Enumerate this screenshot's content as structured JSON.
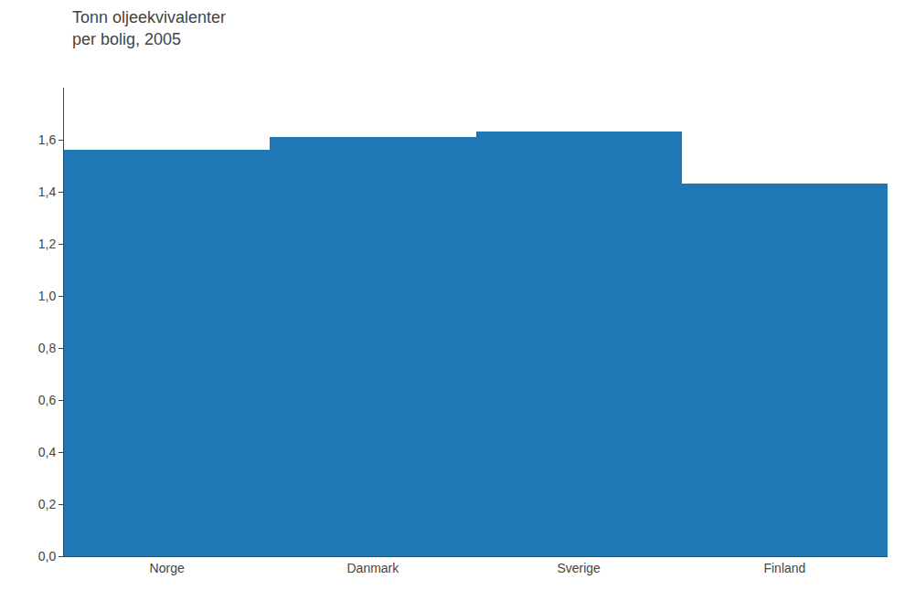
{
  "chart_data": {
    "type": "bar",
    "title": "Tonn oljeekvivalenter",
    "subtitle": "per bolig, 2005",
    "categories": [
      "Norge",
      "Danmark",
      "Sverige",
      "Finland"
    ],
    "values": [
      1.56,
      1.61,
      1.63,
      1.43
    ],
    "ylim": [
      0.0,
      1.8
    ],
    "yticks": [
      {
        "value": 0.0,
        "label": "0,0"
      },
      {
        "value": 0.2,
        "label": "0,2"
      },
      {
        "value": 0.4,
        "label": "0,4"
      },
      {
        "value": 0.6,
        "label": "0,6"
      },
      {
        "value": 0.8,
        "label": "0,8"
      },
      {
        "value": 1.0,
        "label": "1,0"
      },
      {
        "value": 1.2,
        "label": "1,2"
      },
      {
        "value": 1.4,
        "label": "1,4"
      },
      {
        "value": 1.6,
        "label": "1,6"
      }
    ],
    "grid": false
  }
}
